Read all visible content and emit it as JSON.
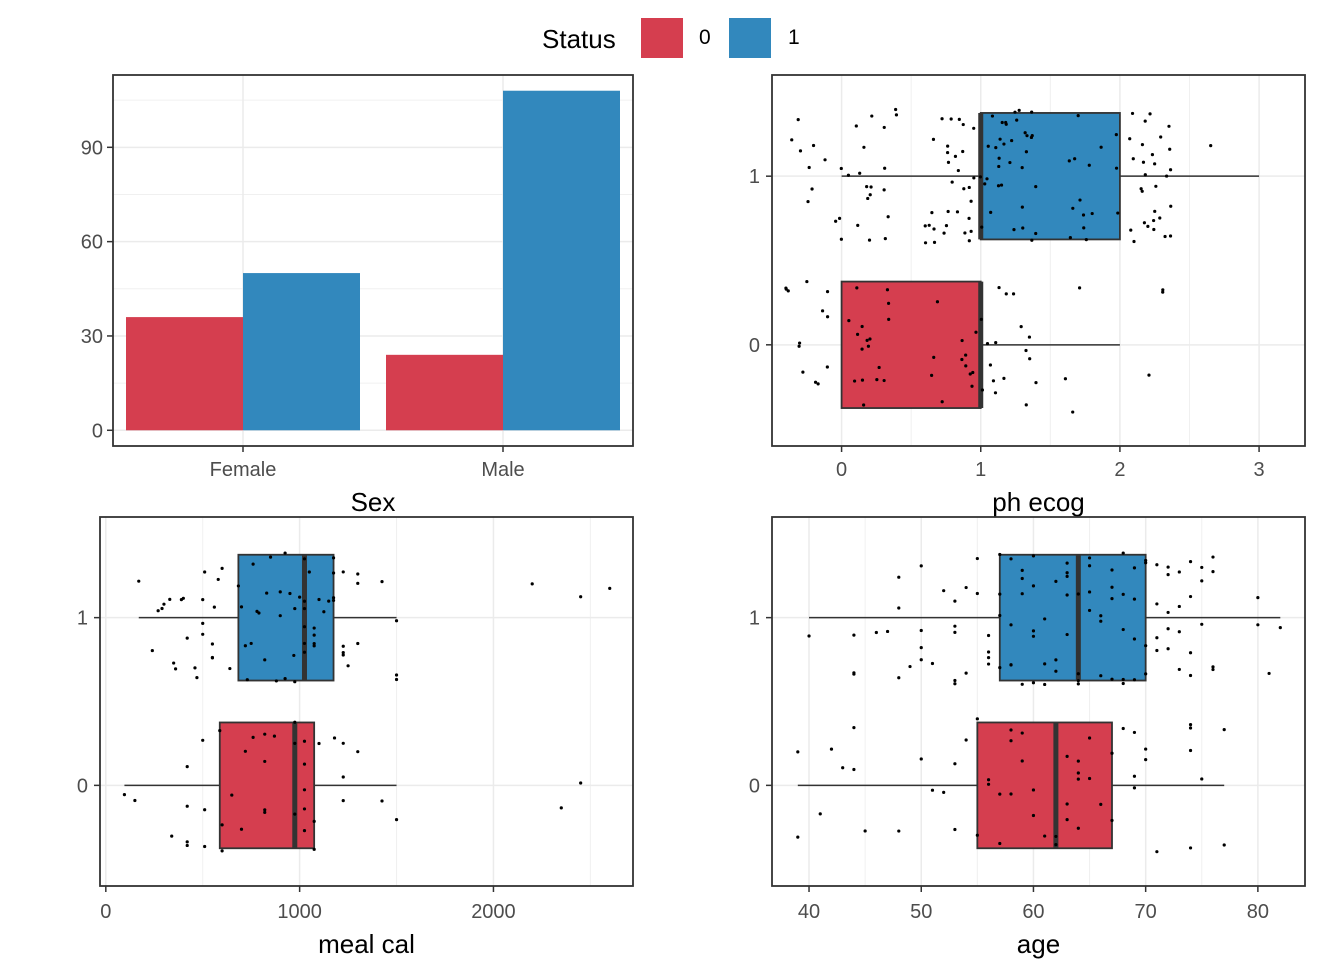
{
  "legend": {
    "title": "Status",
    "items": [
      {
        "label": "0",
        "color": "#D53E4F"
      },
      {
        "label": "1",
        "color": "#3288BD"
      }
    ]
  },
  "chart_data": [
    {
      "type": "bar",
      "id": "sex",
      "title": "",
      "xlabel": "Sex",
      "ylabel": "",
      "categories": [
        "Female",
        "Male"
      ],
      "series": [
        {
          "name": "0",
          "color": "#D53E4F",
          "values": [
            36,
            24
          ]
        },
        {
          "name": "1",
          "color": "#3288BD",
          "values": [
            50,
            108
          ]
        }
      ],
      "ylim": [
        -5,
        113
      ],
      "yticks": [
        0,
        30,
        60,
        90
      ],
      "grid": true,
      "legend": "top"
    },
    {
      "type": "boxplot",
      "id": "ph_ecog",
      "xlabel": "ph ecog",
      "ylabel": "",
      "categories": [
        "0",
        "1"
      ],
      "xlim": [
        -0.5,
        3.33
      ],
      "xticks": [
        0,
        1,
        2,
        3
      ],
      "boxes": [
        {
          "group": "0",
          "color": "#D53E4F",
          "whisker_low": 0,
          "q1": 0,
          "median": 1,
          "q3": 1,
          "whisker_high": 2
        },
        {
          "group": "1",
          "color": "#3288BD",
          "whisker_low": 0,
          "q1": 1,
          "median": 1,
          "q3": 2,
          "whisker_high": 3
        }
      ],
      "jitter": {
        "group_0_values": [
          0,
          0,
          0,
          0,
          0,
          0,
          0,
          0,
          0,
          0,
          0,
          0,
          0,
          0,
          0,
          0,
          0,
          0,
          1,
          1,
          1,
          1,
          1,
          1,
          1,
          1,
          1,
          1,
          1,
          1,
          1,
          1,
          1,
          1,
          1,
          1,
          1,
          1,
          1,
          1,
          1,
          1,
          1,
          1,
          1,
          1,
          1,
          2,
          2,
          2,
          2,
          2,
          2,
          0,
          0,
          0,
          0,
          0,
          0,
          0,
          0,
          0,
          0,
          0,
          0
        ],
        "group_1_values": [
          0,
          0,
          0,
          0,
          0,
          0,
          0,
          0,
          0,
          0,
          0,
          0,
          0,
          0,
          0,
          0,
          0,
          0,
          0,
          0,
          0,
          0,
          0,
          0,
          0,
          0,
          0,
          0,
          0,
          0,
          1,
          1,
          1,
          1,
          1,
          1,
          1,
          1,
          1,
          1,
          1,
          1,
          1,
          1,
          1,
          1,
          1,
          1,
          1,
          1,
          1,
          1,
          1,
          1,
          1,
          1,
          1,
          1,
          1,
          1,
          1,
          1,
          1,
          1,
          1,
          1,
          1,
          1,
          1,
          1,
          1,
          1,
          1,
          1,
          1,
          1,
          1,
          1,
          1,
          1,
          1,
          1,
          1,
          1,
          1,
          1,
          1,
          1,
          1,
          1,
          1,
          1,
          1,
          1,
          1,
          1,
          2,
          2,
          2,
          2,
          2,
          2,
          2,
          2,
          2,
          2,
          2,
          2,
          2,
          2,
          2,
          2,
          2,
          2,
          2,
          2,
          2,
          2,
          2,
          2,
          2,
          2,
          2,
          2,
          2,
          2,
          2,
          2,
          2,
          2,
          2,
          2,
          2,
          2,
          2,
          2,
          2,
          2,
          2,
          2,
          3
        ]
      },
      "grid": true
    },
    {
      "type": "boxplot",
      "id": "meal_cal",
      "xlabel": "meal cal",
      "ylabel": "",
      "categories": [
        "0",
        "1"
      ],
      "xlim": [
        -30,
        2720
      ],
      "xticks": [
        0,
        1000,
        2000
      ],
      "boxes": [
        {
          "group": "0",
          "color": "#D53E4F",
          "whisker_low": 96,
          "q1": 588,
          "median": 975,
          "q3": 1075,
          "whisker_high": 1500
        },
        {
          "group": "1",
          "color": "#3288BD",
          "whisker_low": 170,
          "q1": 684,
          "median": 1025,
          "q3": 1175,
          "whisker_high": 1500
        }
      ],
      "outliers": {
        "group_0": [
          2350,
          2450
        ],
        "group_1": [
          2200,
          2450,
          2600
        ]
      },
      "jitter": {
        "group_0_values": [
          96,
          150,
          340,
          420,
          420,
          420,
          420,
          500,
          510,
          510,
          588,
          600,
          600,
          650,
          700,
          720,
          760,
          820,
          820,
          820,
          820,
          870,
          975,
          975,
          975,
          1025,
          1025,
          1025,
          1025,
          1025,
          1075,
          1075,
          1100,
          1180,
          1225,
          1225,
          1225,
          1300,
          1425,
          1500
        ],
        "group_1_values": [
          170,
          240,
          270,
          290,
          300,
          330,
          350,
          360,
          390,
          400,
          420,
          460,
          470,
          500,
          500,
          500,
          510,
          550,
          550,
          550,
          560,
          580,
          600,
          640,
          684,
          700,
          720,
          730,
          750,
          760,
          780,
          790,
          820,
          830,
          850,
          880,
          900,
          900,
          925,
          925,
          950,
          970,
          975,
          975,
          1000,
          1025,
          1025,
          1025,
          1025,
          1025,
          1025,
          1050,
          1075,
          1075,
          1075,
          1075,
          1100,
          1125,
          1150,
          1175,
          1175,
          1175,
          1175,
          1225,
          1225,
          1225,
          1225,
          1250,
          1300,
          1300,
          1300,
          1425,
          1500,
          1500,
          1500
        ]
      },
      "grid": true
    },
    {
      "type": "boxplot",
      "id": "age",
      "xlabel": "age",
      "ylabel": "",
      "categories": [
        "0",
        "1"
      ],
      "xlim": [
        36.7,
        84.2
      ],
      "xticks": [
        40,
        50,
        60,
        70,
        80
      ],
      "boxes": [
        {
          "group": "0",
          "color": "#D53E4F",
          "whisker_low": 39,
          "q1": 55,
          "median": 62,
          "q3": 67,
          "whisker_high": 77
        },
        {
          "group": "1",
          "color": "#3288BD",
          "whisker_low": 40,
          "q1": 57,
          "median": 64,
          "q3": 70,
          "whisker_high": 82
        }
      ],
      "jitter": {
        "group_0_values": [
          39,
          39,
          41,
          42,
          43,
          44,
          44,
          45,
          48,
          50,
          51,
          52,
          53,
          53,
          54,
          55,
          55,
          56,
          56,
          57,
          57,
          58,
          58,
          58,
          59,
          59,
          60,
          60,
          61,
          62,
          62,
          63,
          63,
          63,
          64,
          64,
          64,
          64,
          65,
          65,
          66,
          67,
          67,
          68,
          69,
          69,
          69,
          70,
          70,
          71,
          74,
          74,
          74,
          74,
          75,
          77,
          77
        ],
        "group_1_values": [
          40,
          44,
          44,
          44,
          46,
          47,
          48,
          48,
          48,
          49,
          50,
          50,
          50,
          50,
          51,
          52,
          53,
          53,
          53,
          53,
          53,
          54,
          54,
          55,
          55,
          56,
          56,
          56,
          56,
          57,
          57,
          57,
          57,
          58,
          58,
          58,
          58,
          59,
          59,
          59,
          59,
          60,
          60,
          60,
          60,
          60,
          61,
          61,
          61,
          62,
          62,
          62,
          63,
          63,
          63,
          63,
          63,
          64,
          64,
          64,
          64,
          65,
          65,
          65,
          65,
          66,
          66,
          66,
          67,
          67,
          67,
          67,
          68,
          68,
          68,
          68,
          68,
          69,
          69,
          69,
          69,
          70,
          70,
          70,
          70,
          71,
          71,
          71,
          71,
          72,
          72,
          72,
          72,
          72,
          73,
          73,
          73,
          73,
          74,
          74,
          74,
          74,
          75,
          75,
          75,
          76,
          76,
          76,
          76,
          80,
          80,
          81,
          82
        ]
      },
      "grid": true
    }
  ]
}
